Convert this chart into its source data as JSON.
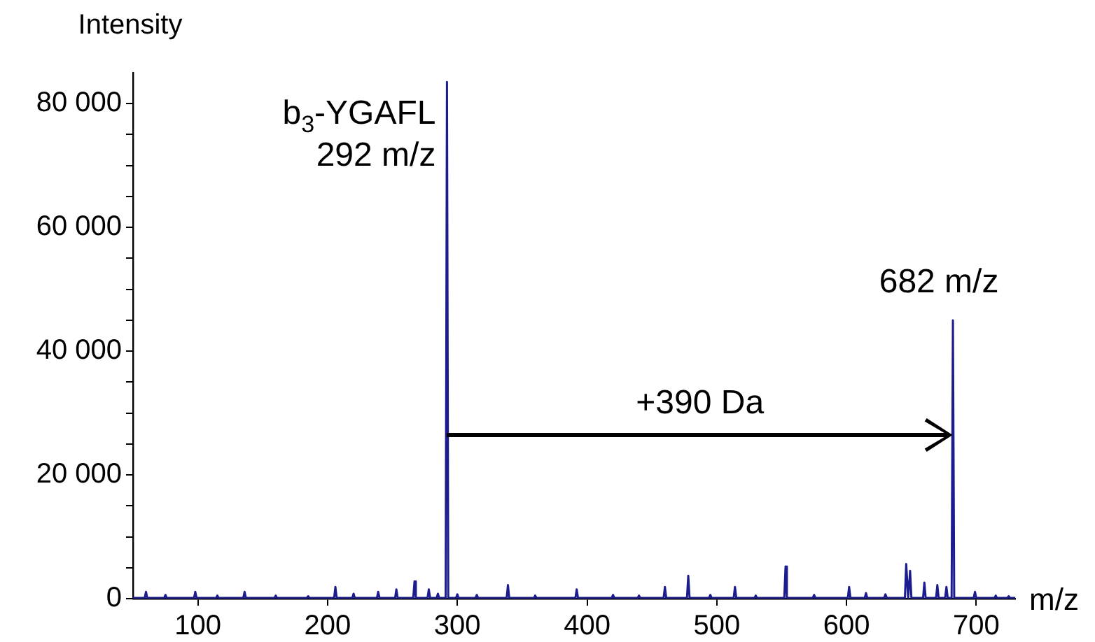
{
  "chart_data": {
    "type": "line",
    "xlabel": "m/z",
    "ylabel": "Intensity",
    "color": "#1c1c8e",
    "grid": false,
    "legend": false,
    "marker": "none",
    "xlim": [
      50,
      730
    ],
    "xticks": [
      100,
      200,
      300,
      400,
      500,
      600,
      700
    ],
    "ylim": [
      0,
      85000
    ],
    "yticks": [
      0,
      {
        "value": 5000,
        "label": null
      },
      {
        "value": 10000,
        "label": null
      },
      {
        "value": 15000,
        "label": null
      },
      {
        "value": 20000,
        "label": "20 000"
      },
      {
        "value": 25000,
        "label": null
      },
      {
        "value": 30000,
        "label": null
      },
      {
        "value": 35000,
        "label": null
      },
      {
        "value": 40000,
        "label": "40 000"
      },
      {
        "value": 45000,
        "label": null
      },
      {
        "value": 50000,
        "label": null
      },
      {
        "value": 55000,
        "label": null
      },
      {
        "value": 60000,
        "label": "60 000"
      },
      {
        "value": 65000,
        "label": null
      },
      {
        "value": 70000,
        "label": null
      },
      {
        "value": 75000,
        "label": null
      },
      {
        "value": 80000,
        "label": "80 000"
      }
    ],
    "x": [
      50,
      59,
      60,
      61,
      74,
      75,
      76,
      97,
      98,
      99,
      114,
      115,
      116,
      135,
      136,
      137,
      159,
      160,
      161,
      184,
      185,
      186,
      205,
      206,
      207,
      219,
      220,
      221,
      238,
      239,
      240,
      252,
      253,
      254,
      266,
      267,
      268,
      277,
      278,
      279,
      284,
      285,
      286,
      291,
      292,
      293,
      299,
      300,
      301,
      314,
      315,
      316,
      338,
      339,
      340,
      359,
      360,
      361,
      391,
      392,
      393,
      419,
      420,
      421,
      439,
      440,
      441,
      459,
      460,
      461,
      477,
      478,
      479,
      494,
      495,
      496,
      513,
      514,
      515,
      529,
      530,
      531,
      552,
      553,
      554,
      574,
      575,
      576,
      601,
      602,
      603,
      614,
      615,
      616,
      629,
      630,
      631,
      645,
      646,
      647.5,
      649,
      650,
      659,
      660,
      661,
      669,
      670,
      671,
      676,
      677,
      678,
      681,
      682,
      683,
      698,
      699,
      700,
      714,
      715,
      716,
      724,
      725,
      726,
      730
    ],
    "values": [
      100,
      100,
      1100,
      100,
      100,
      600,
      100,
      100,
      1100,
      100,
      100,
      500,
      100,
      100,
      1100,
      100,
      100,
      500,
      100,
      100,
      400,
      100,
      100,
      1900,
      100,
      100,
      800,
      100,
      100,
      1100,
      100,
      100,
      1500,
      100,
      100,
      2800,
      100,
      100,
      1500,
      100,
      100,
      800,
      100,
      100,
      83500,
      100,
      100,
      700,
      100,
      100,
      600,
      100,
      100,
      2200,
      100,
      100,
      500,
      100,
      100,
      1500,
      100,
      100,
      600,
      100,
      100,
      500,
      100,
      100,
      1900,
      100,
      100,
      3700,
      100,
      100,
      600,
      100,
      100,
      1900,
      100,
      100,
      500,
      100,
      100,
      5200,
      100,
      100,
      600,
      100,
      100,
      1900,
      100,
      100,
      900,
      100,
      100,
      700,
      100,
      100,
      5600,
      100,
      4500,
      100,
      100,
      2600,
      100,
      100,
      2200,
      100,
      100,
      1900,
      100,
      100,
      45000,
      100,
      100,
      1100,
      100,
      100,
      500,
      100,
      100,
      400,
      100,
      100
    ],
    "annotations": [
      {
        "text": "b$_{3}$-YGAFL\n292 m/z",
        "x": 292,
        "y": 83500
      },
      {
        "text": "682 m/z",
        "x": 682,
        "y": 45000
      },
      "+390 Da"
    ]
  }
}
